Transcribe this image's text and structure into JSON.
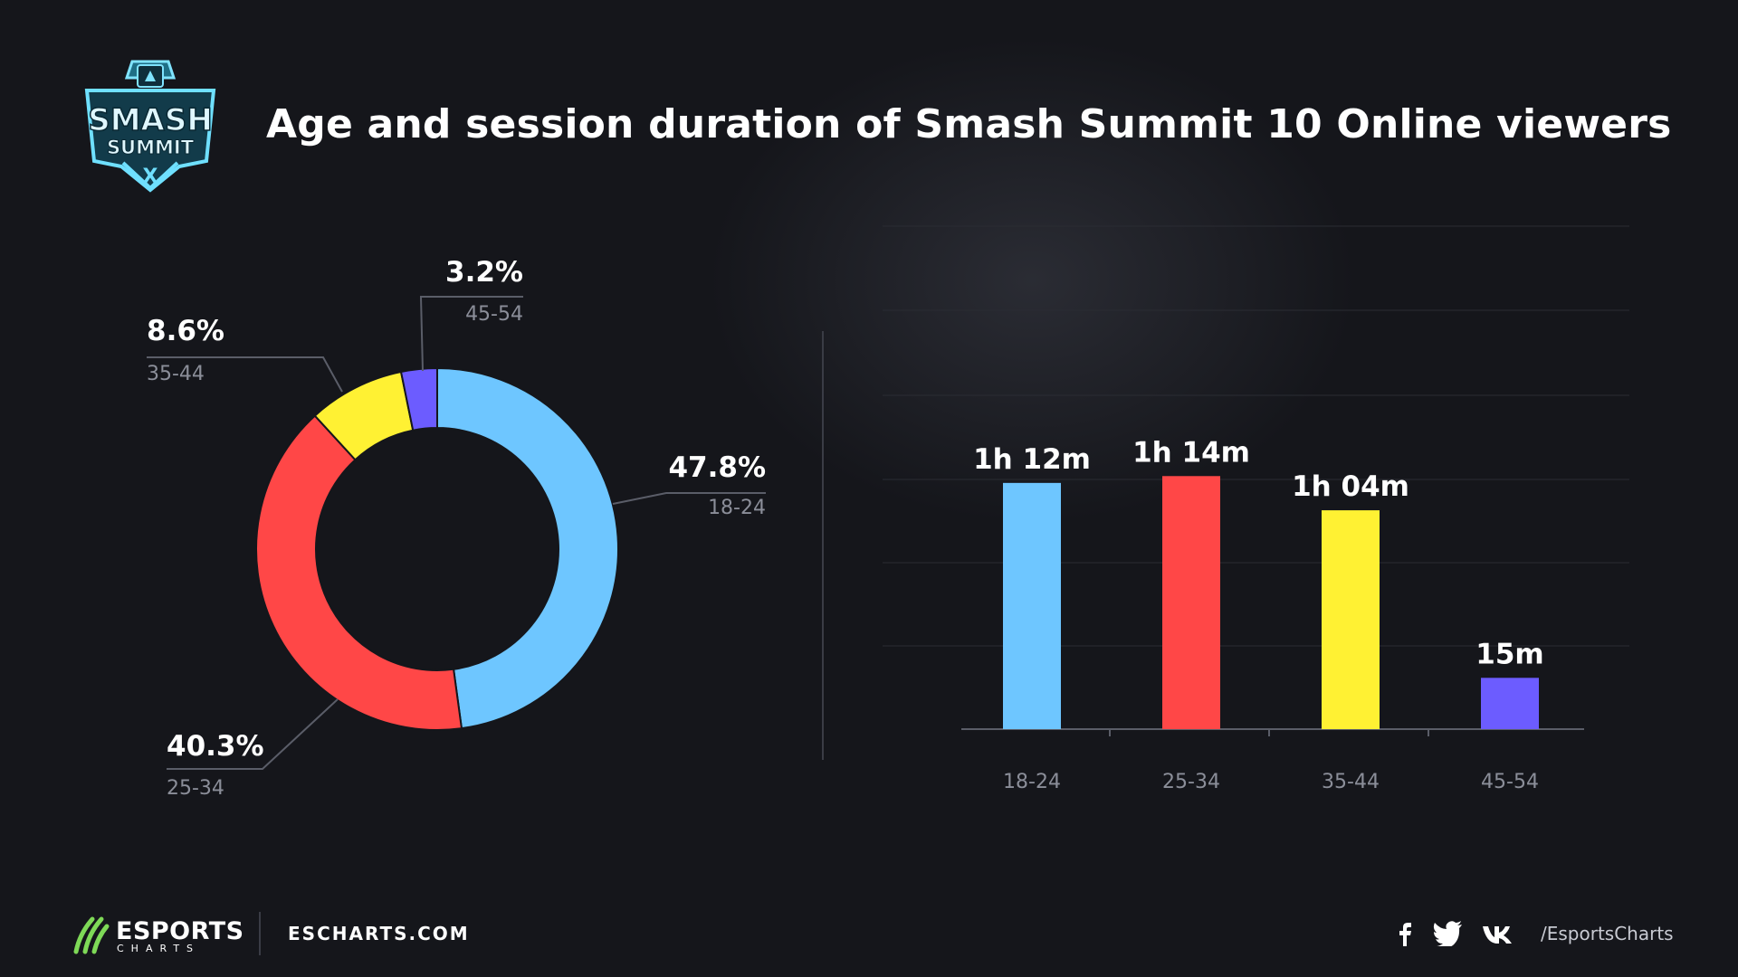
{
  "header": {
    "title": "Age and session duration of Smash Summit 10 Online viewers",
    "logo_name": "smash-summit-logo",
    "logo_text": "SMASH SUMMIT X"
  },
  "chart_data": [
    {
      "type": "pie",
      "style": "donut",
      "labels": [
        "18-24",
        "25-34",
        "35-44",
        "45-54"
      ],
      "values": [
        47.8,
        40.3,
        8.6,
        3.2
      ],
      "value_labels": [
        "47.8%",
        "40.3%",
        "8.6%",
        "3.2%"
      ],
      "colors": [
        "#6ec6ff",
        "#ff4747",
        "#fff133",
        "#6c5cff"
      ]
    },
    {
      "type": "bar",
      "categories": [
        "18-24",
        "25-34",
        "35-44",
        "45-54"
      ],
      "values": [
        72,
        74,
        64,
        15
      ],
      "value_labels": [
        "1h 12m",
        "1h 14m",
        "1h 04m",
        "15m"
      ],
      "value_unit": "minutes",
      "colors": [
        "#6ec6ff",
        "#ff4747",
        "#fff133",
        "#6c5cff"
      ],
      "grid": true
    }
  ],
  "footer": {
    "brand": "ESPORTS",
    "brand_sub": "CHARTS",
    "site": "ESCHARTS.COM",
    "social_icons": [
      "facebook-icon",
      "twitter-icon",
      "vk-icon"
    ],
    "handle": "/EsportsCharts"
  }
}
